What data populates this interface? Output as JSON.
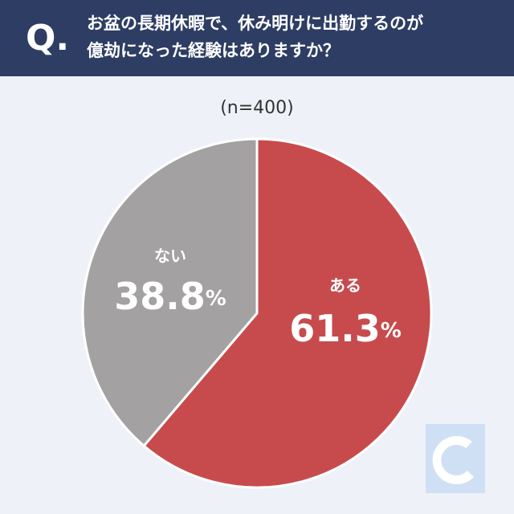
{
  "chart_data": {
    "type": "pie",
    "question_label": "Q.",
    "title": [
      "お盆の長期休暇で、休み明けに出勤するのが",
      "億劫になった経験はありますか？"
    ],
    "subtitle": "(n=400)",
    "categories": [
      "ある",
      "ない"
    ],
    "values": [
      61.3,
      38.8
    ],
    "value_labels": [
      "61.3%",
      "38.8%"
    ],
    "colors": [
      "#c74b4d",
      "#a3a1a2"
    ]
  }
}
